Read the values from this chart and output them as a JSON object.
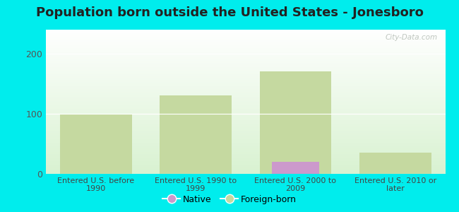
{
  "title": "Population born outside the United States - Jonesboro",
  "title_fontsize": 13,
  "background_outer": "#00eded",
  "categories": [
    "Entered U.S. before\n1990",
    "Entered U.S. 1990 to\n1999",
    "Entered U.S. 2000 to\n2009",
    "Entered U.S. 2010 or\nlater"
  ],
  "native_values": [
    0,
    0,
    20,
    0
  ],
  "foreign_values": [
    100,
    130,
    170,
    35
  ],
  "native_color": "#cc99cc",
  "foreign_color": "#c5d9a0",
  "ylim": [
    0,
    240
  ],
  "yticks": [
    0,
    100,
    200
  ],
  "bar_width": 0.4,
  "legend_native": "Native",
  "legend_foreign": "Foreign-born",
  "watermark": "City-Data.com",
  "title_color": "#222222",
  "tick_color": "#555555",
  "xticklabel_color": "#444444"
}
